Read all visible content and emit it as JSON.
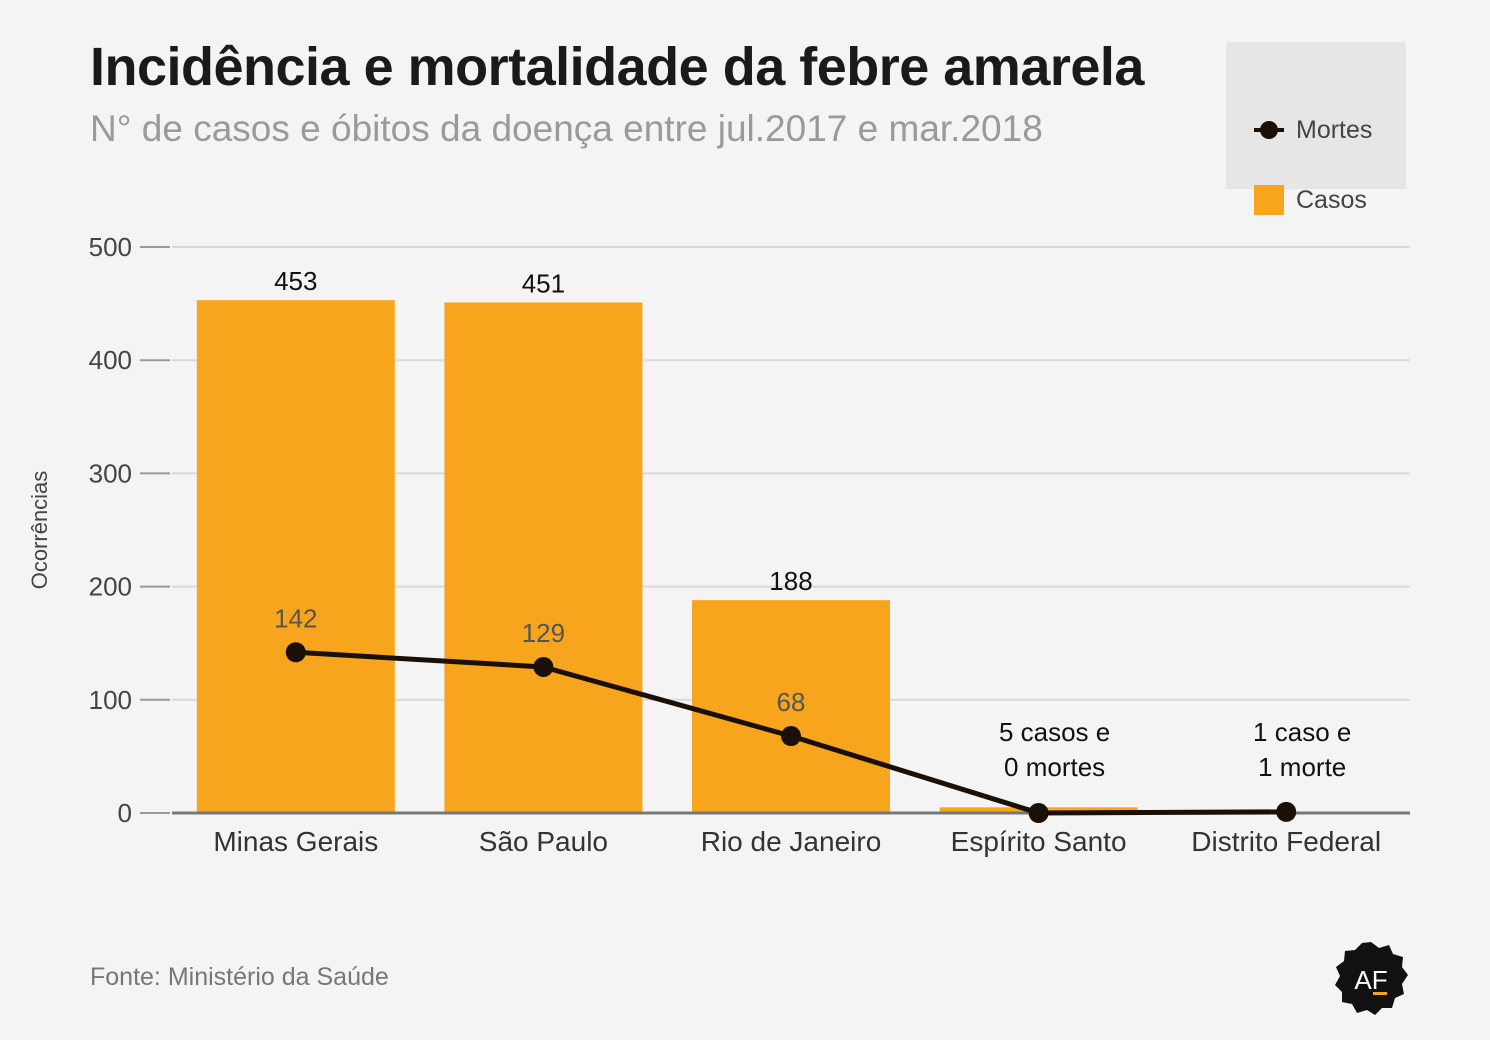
{
  "title": "Incidência e mortalidade da febre amarela",
  "subtitle": "N° de casos e óbitos da doença entre jul.2017 e mar.2018",
  "legend": {
    "deaths_label": "Mortes",
    "cases_label": "Casos"
  },
  "source": "Fonte: Ministério da Saúde",
  "logo_text": "AF",
  "colors": {
    "bars": "#f7a51d",
    "line": "#1a1008",
    "background": "#f4f4f4",
    "grid": "#d9d9d9"
  },
  "chart_data": {
    "type": "bar",
    "categories": [
      "Minas Gerais",
      "São Paulo",
      "Rio de Janeiro",
      "Espírito Santo",
      "Distrito Federal"
    ],
    "series": [
      {
        "name": "Casos",
        "type": "bar",
        "values": [
          453,
          451,
          188,
          5,
          1
        ]
      },
      {
        "name": "Mortes",
        "type": "line",
        "values": [
          142,
          129,
          68,
          0,
          1
        ]
      }
    ],
    "bar_labels": [
      "453",
      "451",
      "188",
      "",
      ""
    ],
    "line_labels": [
      "142",
      "129",
      "68",
      "",
      ""
    ],
    "annotations": [
      {
        "category": "Espírito Santo",
        "lines": [
          "5 casos e",
          "0 mortes"
        ]
      },
      {
        "category": "Distrito Federal",
        "lines": [
          "1 caso e",
          "1 morte"
        ]
      }
    ],
    "ylabel": "Ocorrências",
    "xlabel": "",
    "ylim": [
      0,
      500
    ],
    "yticks": [
      0,
      100,
      200,
      300,
      400,
      500
    ],
    "grid": true,
    "legend_position": "top-right"
  }
}
